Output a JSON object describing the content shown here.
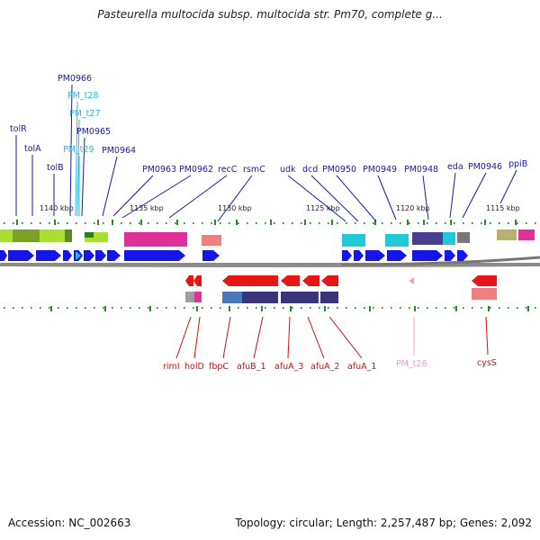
{
  "title": "Pasteurella multocida subsp. multocida str. Pm70, complete g...",
  "accession": "Accession: NC_002663",
  "topology": "Topology: circular; Length: 2,257,487 bp; Genes: 2,092",
  "colors": {
    "label_top": "#1a1a9e",
    "label_trna": "#2ab6e6",
    "label_bottom": "#cc1111",
    "label_trna_bottom": "#f0a0c0",
    "cds_forward": "#1515e8",
    "cds_reverse": "#e81515",
    "backbone": "#999999",
    "tick_mark": "#2a8a2a"
  },
  "scale": {
    "ticks": [
      {
        "label": "1140 kbp"
      },
      {
        "label": "1135 kbp"
      },
      {
        "label": "1130 kbp"
      },
      {
        "label": "1125 kbp"
      },
      {
        "label": "1120 kbp"
      },
      {
        "label": "1115 kbp"
      }
    ]
  },
  "labels_top": [
    {
      "text": "tolR",
      "type": "cds"
    },
    {
      "text": "tolA",
      "type": "cds"
    },
    {
      "text": "tolB",
      "type": "cds"
    },
    {
      "text": "PM0966",
      "type": "cds"
    },
    {
      "text": "PM_t28",
      "type": "trna"
    },
    {
      "text": "PM_t27",
      "type": "trna"
    },
    {
      "text": "PM0965",
      "type": "cds"
    },
    {
      "text": "PM_t29",
      "type": "trna"
    },
    {
      "text": "PM0964",
      "type": "cds"
    },
    {
      "text": "PM0963",
      "type": "cds"
    },
    {
      "text": "PM0962",
      "type": "cds"
    },
    {
      "text": "recC",
      "type": "cds"
    },
    {
      "text": "rsmC",
      "type": "cds"
    },
    {
      "text": "udk",
      "type": "cds"
    },
    {
      "text": "dcd",
      "type": "cds"
    },
    {
      "text": "PM0950",
      "type": "cds"
    },
    {
      "text": "PM0949",
      "type": "cds"
    },
    {
      "text": "PM0948",
      "type": "cds"
    },
    {
      "text": "eda",
      "type": "cds"
    },
    {
      "text": "PM0946",
      "type": "cds"
    },
    {
      "text": "ppiB",
      "type": "cds"
    }
  ],
  "labels_bottom": [
    {
      "text": "rimI",
      "type": "cds"
    },
    {
      "text": "holD",
      "type": "cds"
    },
    {
      "text": "fbpC",
      "type": "cds"
    },
    {
      "text": "afuB_1",
      "type": "cds"
    },
    {
      "text": "afuA_3",
      "type": "cds"
    },
    {
      "text": "afuA_2",
      "type": "cds"
    },
    {
      "text": "afuA_1",
      "type": "cds"
    },
    {
      "text": "PM_t26",
      "type": "trna"
    },
    {
      "text": "cysS",
      "type": "cds"
    }
  ]
}
